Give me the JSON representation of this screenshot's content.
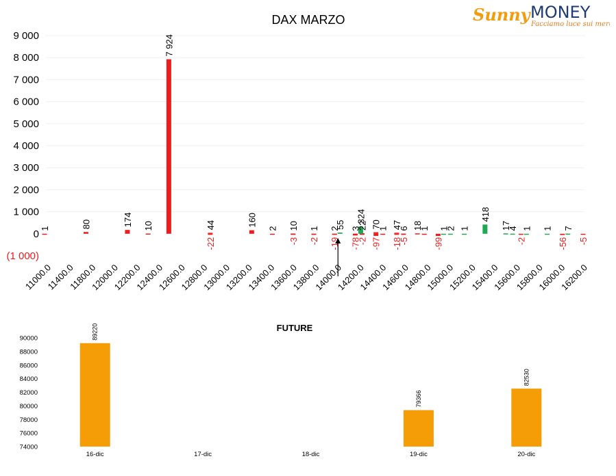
{
  "logo": {
    "word1": "Sunny",
    "word2": "MONEY",
    "tagline": "Facciamo luce sui mercati"
  },
  "colors": {
    "calls": "#ee1c1c",
    "puts": "#21a853",
    "labels_negative": "#ee1c1c",
    "future": "#f59d07",
    "text": "#000000",
    "grid": "#f0f0f0"
  },
  "chart_data": [
    {
      "type": "bar",
      "title": "DAX MARZO",
      "ylim": [
        -1000,
        9000
      ],
      "yticks": [
        -1000,
        0,
        1000,
        2000,
        3000,
        4000,
        5000,
        6000,
        7000,
        8000,
        9000
      ],
      "ytick_labels": [
        "(1 000)",
        "0",
        "1 000",
        "2 000",
        "3 000",
        "4 000",
        "5 000",
        "6 000",
        "7 000",
        "8 000",
        "9 000"
      ],
      "grid": true,
      "xlim": [
        11000,
        16200
      ],
      "xtick_labels": [
        "11000.0",
        "11400.0",
        "11800.0",
        "12000.0",
        "12200.0",
        "12400.0",
        "12600.0",
        "12800.0",
        "13000.0",
        "13200.0",
        "13400.0",
        "13600.0",
        "13800.0",
        "14000.0",
        "14200.0",
        "14400.0",
        "14600.0",
        "14800.0",
        "15000.0",
        "15200.0",
        "15400.0",
        "15600.0",
        "15800.0",
        "16000.0",
        "16200.0"
      ],
      "annotation": "arrow at 13800",
      "series": [
        {
          "color": "red",
          "points": [
            {
              "x": 11000,
              "y": 1,
              "label": "1"
            },
            {
              "x": 11400,
              "y": 80,
              "label": "80"
            },
            {
              "x": 11800,
              "y": 174,
              "label": "174"
            },
            {
              "x": 12000,
              "y": 10,
              "label": "10"
            },
            {
              "x": 12200,
              "y": 7924,
              "label": "7 924"
            },
            {
              "x": 12600,
              "y": 44,
              "label": "44"
            },
            {
              "x": 13000,
              "y": 160,
              "label": "160"
            },
            {
              "x": 13200,
              "y": 2,
              "label": "2"
            },
            {
              "x": 13400,
              "y": 10,
              "label": "10"
            },
            {
              "x": 13600,
              "y": 1,
              "label": "1"
            },
            {
              "x": 13800,
              "y": 2,
              "label": "2"
            },
            {
              "x": 14000,
              "y": 3,
              "label": "3"
            },
            {
              "x": 14000,
              "y": 22,
              "label": "22"
            },
            {
              "x": 14200,
              "y": 70,
              "label": "70"
            },
            {
              "x": 14200,
              "y": 1,
              "label": "1"
            },
            {
              "x": 14400,
              "y": 47,
              "label": "47"
            },
            {
              "x": 14400,
              "y": 6,
              "label": "6"
            },
            {
              "x": 14600,
              "y": 18,
              "label": "18"
            },
            {
              "x": 14600,
              "y": 1,
              "label": "1"
            }
          ]
        },
        {
          "color": "red",
          "points": [
            {
              "x": 12600,
              "y": -22,
              "label": "-22"
            },
            {
              "x": 13400,
              "y": -3,
              "label": "-3"
            },
            {
              "x": 13600,
              "y": -2,
              "label": "-2"
            },
            {
              "x": 13800,
              "y": -19,
              "label": "-19"
            },
            {
              "x": 14000,
              "y": -78,
              "label": "-78"
            },
            {
              "x": 14000,
              "y": -2,
              "label": "-2"
            },
            {
              "x": 14200,
              "y": -97,
              "label": "-97"
            },
            {
              "x": 14400,
              "y": -18,
              "label": "-18"
            },
            {
              "x": 14400,
              "y": -5,
              "label": "-5"
            },
            {
              "x": 14800,
              "y": -99,
              "label": "-99"
            },
            {
              "x": 15600,
              "y": -2,
              "label": "-2"
            },
            {
              "x": 16000,
              "y": -56,
              "label": "-56"
            },
            {
              "x": 16200,
              "y": -5,
              "label": "-5"
            }
          ]
        },
        {
          "color": "green",
          "points": [
            {
              "x": 13800,
              "y": 55,
              "label": "55"
            },
            {
              "x": 14000,
              "y": 324,
              "label": "324"
            },
            {
              "x": 14800,
              "y": 1,
              "label": "1"
            },
            {
              "x": 14800,
              "y": 2,
              "label": "2"
            },
            {
              "x": 15000,
              "y": 1,
              "label": "1"
            },
            {
              "x": 15200,
              "y": 418,
              "label": "418"
            },
            {
              "x": 15400,
              "y": 17,
              "label": "17"
            },
            {
              "x": 15400,
              "y": 4,
              "label": "4"
            },
            {
              "x": 15600,
              "y": 1,
              "label": "1"
            },
            {
              "x": 15800,
              "y": 1,
              "label": "1"
            },
            {
              "x": 16000,
              "y": 7,
              "label": "7"
            }
          ]
        }
      ]
    },
    {
      "type": "bar",
      "title": "FUTURE",
      "categories": [
        "16-dic",
        "17-dic",
        "18-dic",
        "19-dic",
        "20-dic"
      ],
      "values": [
        89220,
        null,
        null,
        79366,
        82530
      ],
      "value_labels": [
        "89220",
        "",
        "",
        "79366",
        "82530"
      ],
      "ylim": [
        74000,
        90000
      ],
      "yticks": [
        74000,
        76000,
        78000,
        80000,
        82000,
        84000,
        86000,
        88000,
        90000
      ],
      "ytick_labels": [
        "74000",
        "76000",
        "78000",
        "80000",
        "82000",
        "84000",
        "86000",
        "88000",
        "90000"
      ],
      "grid": false
    }
  ]
}
